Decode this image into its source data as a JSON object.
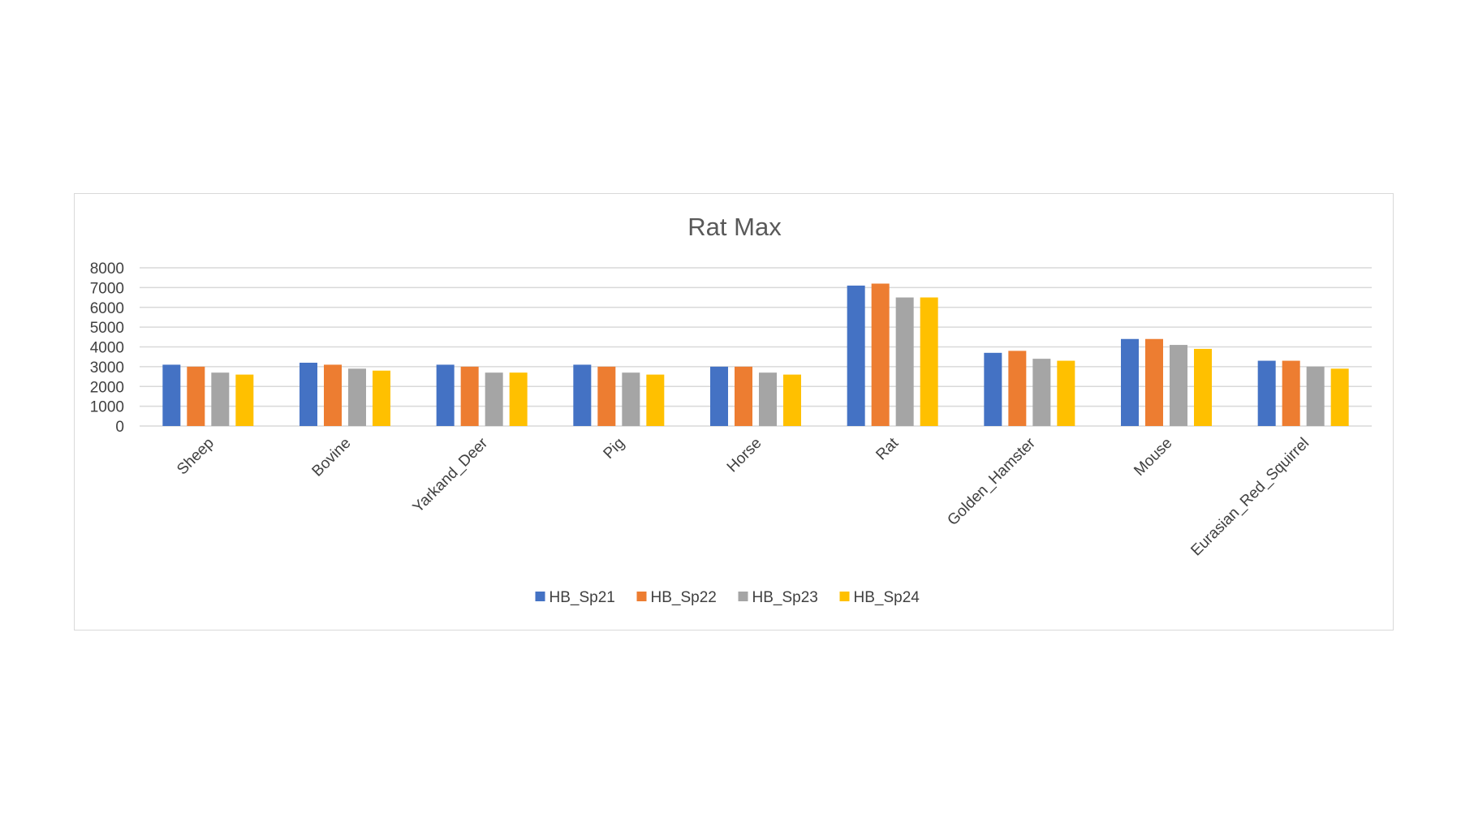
{
  "chart_data": {
    "type": "bar",
    "title": "Rat Max",
    "xlabel": "",
    "ylabel": "",
    "ylim": [
      0,
      8000
    ],
    "yticks": [
      0,
      1000,
      2000,
      3000,
      4000,
      5000,
      6000,
      7000,
      8000
    ],
    "grid": true,
    "legend_position": "bottom",
    "categories": [
      "Sheep",
      "Bovine",
      "Yarkand_Deer",
      "Pig",
      "Horse",
      "Rat",
      "Golden_Hamster",
      "Mouse",
      "Eurasian_Red_Squirrel"
    ],
    "series": [
      {
        "name": "HB_Sp21",
        "color": "#4472c4",
        "values": [
          3100,
          3200,
          3100,
          3100,
          3000,
          7100,
          3700,
          4400,
          3300
        ]
      },
      {
        "name": "HB_Sp22",
        "color": "#ed7d31",
        "values": [
          3000,
          3100,
          3000,
          3000,
          3000,
          7200,
          3800,
          4400,
          3300
        ]
      },
      {
        "name": "HB_Sp23",
        "color": "#a5a5a5",
        "values": [
          2700,
          2900,
          2700,
          2700,
          2700,
          6500,
          3400,
          4100,
          3000
        ]
      },
      {
        "name": "HB_Sp24",
        "color": "#ffc000",
        "values": [
          2600,
          2800,
          2700,
          2600,
          2600,
          6500,
          3300,
          3900,
          2900
        ]
      }
    ]
  }
}
